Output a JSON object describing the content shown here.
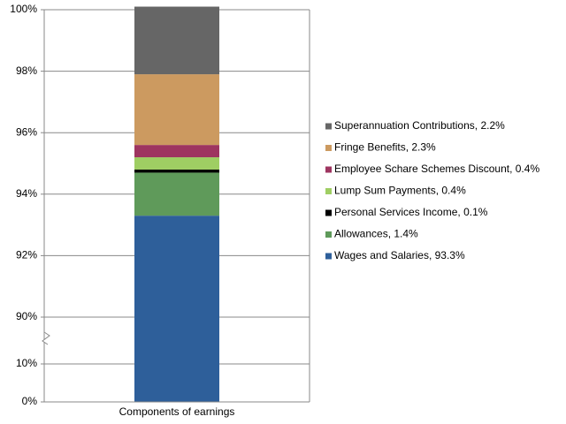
{
  "chart_data": {
    "type": "stacked_bar",
    "categories": [
      "Components of earnings"
    ],
    "series": [
      {
        "name": "Wages and Salaries, 93.3%",
        "color": "#2e5f9a",
        "values": [
          93.3
        ]
      },
      {
        "name": "Allowances, 1.4%",
        "color": "#5f9a5a",
        "values": [
          1.4
        ]
      },
      {
        "name": "Personal Services Income, 0.1%",
        "color": "#000000",
        "values": [
          0.1
        ]
      },
      {
        "name": "Lump Sum Payments, 0.4%",
        "color": "#9fce63",
        "values": [
          0.4
        ]
      },
      {
        "name": "Employee Schare Schemes Discount, 0.4%",
        "color": "#9e3560",
        "values": [
          0.4
        ]
      },
      {
        "name": "Fringe Benefits, 2.3%",
        "color": "#cc9a60",
        "values": [
          2.3
        ]
      },
      {
        "name": "Superannuation Contributions, 2.2%",
        "color": "#666666",
        "values": [
          2.2
        ]
      }
    ],
    "ylim": [
      0,
      100
    ],
    "axis_break": [
      10,
      90
    ],
    "yticks": [
      {
        "value": 0,
        "label": "0%"
      },
      {
        "value": 10,
        "label": "10%"
      },
      {
        "value": 90,
        "label": "90%"
      },
      {
        "value": 92,
        "label": "92%"
      },
      {
        "value": 94,
        "label": "94%"
      },
      {
        "value": 96,
        "label": "96%"
      },
      {
        "value": 98,
        "label": "98%"
      },
      {
        "value": 100,
        "label": "100%"
      }
    ],
    "grid": true,
    "legend": "right"
  }
}
